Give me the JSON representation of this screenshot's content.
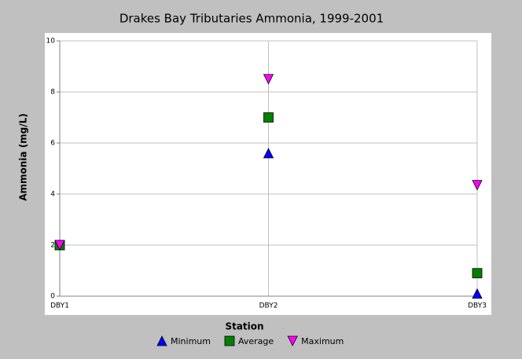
{
  "chart_data": {
    "type": "scatter",
    "title": "Drakes Bay Tributaries Ammonia, 1999-2001",
    "x_label": "Station",
    "y_label": "Ammonia (mg/L)",
    "categories": [
      "DBY1",
      "DBY2",
      "DBY3"
    ],
    "series": [
      {
        "name": "Minimum",
        "color": "#0000ff",
        "marker": "triangle-up",
        "values": [
          2,
          5.6,
          0.1
        ]
      },
      {
        "name": "Average",
        "color": "#008000",
        "marker": "square",
        "values": [
          2,
          7,
          0.9
        ]
      },
      {
        "name": "Maximum",
        "color": "#ff00ff",
        "marker": "triangle-down",
        "values": [
          2,
          8.5,
          4.35
        ]
      }
    ],
    "ylim": [
      0,
      10
    ],
    "yticks": [
      0,
      2,
      4,
      6,
      8,
      10
    ],
    "grid": true
  }
}
